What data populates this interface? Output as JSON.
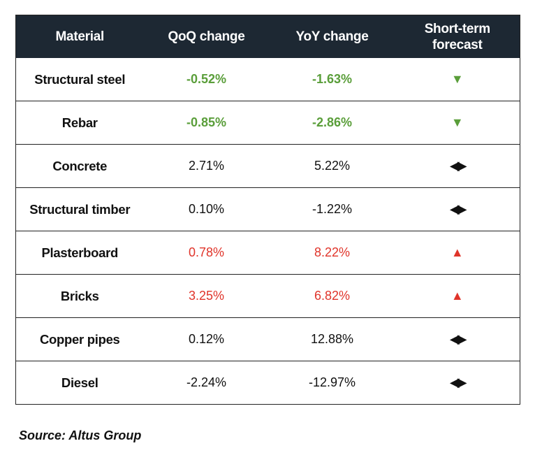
{
  "header": {
    "material": "Material",
    "qoq": "QoQ change",
    "yoy": "YoY change",
    "forecast_line1": "Short-term",
    "forecast_line2": "forecast"
  },
  "rows": [
    {
      "material": "Structural steel",
      "qoq": "-0.52%",
      "yoy": "-1.63%",
      "tone": "green",
      "forecast": "down",
      "forecast_glyph": "▼"
    },
    {
      "material": "Rebar",
      "qoq": "-0.85%",
      "yoy": "-2.86%",
      "tone": "green",
      "forecast": "down",
      "forecast_glyph": "▼"
    },
    {
      "material": "Concrete",
      "qoq": "2.71%",
      "yoy": "5.22%",
      "tone": "neutral",
      "forecast": "flat",
      "forecast_glyph": "◀▶"
    },
    {
      "material": "Structural timber",
      "qoq": "0.10%",
      "yoy": "-1.22%",
      "tone": "neutral",
      "forecast": "flat",
      "forecast_glyph": "◀▶"
    },
    {
      "material": "Plasterboard",
      "qoq": "0.78%",
      "yoy": "8.22%",
      "tone": "red",
      "forecast": "up",
      "forecast_glyph": "▲"
    },
    {
      "material": "Bricks",
      "qoq": "3.25%",
      "yoy": "6.82%",
      "tone": "red",
      "forecast": "up",
      "forecast_glyph": "▲"
    },
    {
      "material": "Copper pipes",
      "qoq": "0.12%",
      "yoy": "12.88%",
      "tone": "neutral",
      "forecast": "flat",
      "forecast_glyph": "◀▶"
    },
    {
      "material": "Diesel",
      "qoq": "-2.24%",
      "yoy": "-12.97%",
      "tone": "neutral",
      "forecast": "flat",
      "forecast_glyph": "◀▶"
    }
  ],
  "colors": {
    "header_bg": "#1d2833",
    "decrease_green": "#5a9e3a",
    "increase_red": "#e0342a"
  },
  "source": "Source: Altus Group"
}
